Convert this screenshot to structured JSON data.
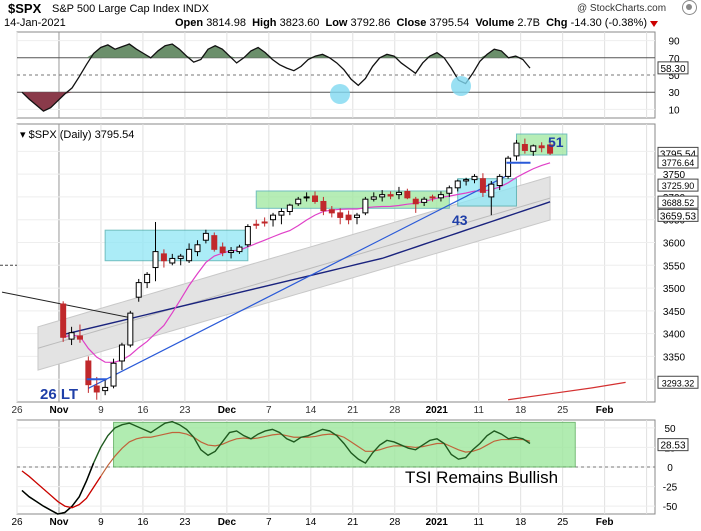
{
  "header": {
    "symbol": "$SPX",
    "name": "S&P 500 Large Cap Index",
    "exchange": "INDX",
    "date": "14-Jan-2021",
    "open_label": "Open",
    "open": "3814.98",
    "high_label": "High",
    "high": "3823.60",
    "low_label": "Low",
    "low": "3792.86",
    "close_label": "Close",
    "close": "3795.54",
    "volume_label": "Volume",
    "volume": "2.7B",
    "chg_label": "Chg",
    "chg": "-14.30 (-0.38%)",
    "watermark": "@ StockCharts.com"
  },
  "price_legend": "$SPX (Daily) 3795.54",
  "annotations": {
    "bottom_low": "26 LT",
    "box_low": "43",
    "box_high": "51",
    "tsi_note": "TSI Remains Bullish"
  },
  "colors": {
    "up": "#000000",
    "down": "#c0282b",
    "box_cyan": "#8fe6f5",
    "box_green": "#9ee89e",
    "ma_fast": "#e040c8",
    "ma_slow": "#1a237e",
    "trendline": "#2a5ad8",
    "ma_long": "#d43030",
    "tsi_line": "#1f5a1f",
    "tsi_signal": "#c0633a"
  },
  "chart_data": [
    {
      "type": "line",
      "panel": "upper-oscillator",
      "ylim": [
        0,
        100
      ],
      "y_ticks": [
        "90",
        "70",
        "50",
        "30",
        "10"
      ],
      "reference_levels": [
        70,
        30
      ],
      "last_value": "58.30",
      "values": [
        30,
        22,
        15,
        8,
        12,
        20,
        28,
        35,
        48,
        62,
        75,
        82,
        85,
        80,
        83,
        86,
        80,
        75,
        70,
        78,
        84,
        86,
        80,
        72,
        65,
        68,
        80,
        84,
        80,
        72,
        64,
        70,
        78,
        82,
        76,
        68,
        62,
        58,
        55,
        60,
        68,
        72,
        74,
        70,
        64,
        56,
        45,
        38,
        46,
        60,
        70,
        74,
        72,
        64,
        58,
        52,
        64,
        72,
        76,
        70,
        58,
        44,
        40,
        52,
        66,
        74,
        80,
        78,
        70,
        72,
        68,
        58
      ]
    },
    {
      "type": "candlestick",
      "panel": "price",
      "title": "$SPX (Daily) 3795.54",
      "ylim": [
        3250,
        3860
      ],
      "y_ticks": [
        3300,
        3350,
        3400,
        3450,
        3500,
        3550,
        3600,
        3650,
        3700,
        3750,
        3800
      ],
      "x_tick_labels": [
        "26",
        "Nov",
        "9",
        "16",
        "23",
        "Dec",
        "7",
        "14",
        "21",
        "28",
        "2021",
        "11",
        "18",
        "25",
        "Feb"
      ],
      "right_labels": [
        "3795.54",
        "3776.64",
        "3750",
        "3725.90",
        "3700",
        "3688.52",
        "3659.53",
        "3293.32"
      ],
      "ohlc": [
        [
          3465,
          3471,
          3382,
          3392
        ],
        [
          3388,
          3415,
          3375,
          3402
        ],
        [
          3395,
          3420,
          3380,
          3388
        ],
        [
          3340,
          3350,
          3270,
          3288
        ],
        [
          3285,
          3305,
          3255,
          3272
        ],
        [
          3275,
          3300,
          3265,
          3282
        ],
        [
          3285,
          3345,
          3280,
          3335
        ],
        [
          3340,
          3380,
          3320,
          3375
        ],
        [
          3375,
          3450,
          3370,
          3445
        ],
        [
          3480,
          3520,
          3470,
          3512
        ],
        [
          3512,
          3535,
          3500,
          3530
        ],
        [
          3545,
          3645,
          3515,
          3580
        ],
        [
          3575,
          3585,
          3545,
          3560
        ],
        [
          3555,
          3575,
          3550,
          3565
        ],
        [
          3565,
          3575,
          3550,
          3570
        ],
        [
          3560,
          3598,
          3555,
          3585
        ],
        [
          3580,
          3605,
          3570,
          3595
        ],
        [
          3605,
          3628,
          3598,
          3620
        ],
        [
          3615,
          3622,
          3580,
          3585
        ],
        [
          3590,
          3600,
          3570,
          3578
        ],
        [
          3578,
          3590,
          3565,
          3582
        ],
        [
          3580,
          3595,
          3575,
          3590
        ],
        [
          3595,
          3640,
          3590,
          3635
        ],
        [
          3640,
          3650,
          3630,
          3638
        ],
        [
          3645,
          3655,
          3635,
          3643
        ],
        [
          3650,
          3665,
          3635,
          3660
        ],
        [
          3660,
          3675,
          3640,
          3668
        ],
        [
          3668,
          3685,
          3660,
          3682
        ],
        [
          3685,
          3700,
          3680,
          3695
        ],
        [
          3700,
          3710,
          3690,
          3700
        ],
        [
          3702,
          3712,
          3685,
          3690
        ],
        [
          3690,
          3700,
          3660,
          3670
        ],
        [
          3672,
          3680,
          3655,
          3665
        ],
        [
          3665,
          3675,
          3640,
          3655
        ],
        [
          3660,
          3670,
          3640,
          3650
        ],
        [
          3655,
          3665,
          3640,
          3660
        ],
        [
          3665,
          3700,
          3660,
          3695
        ],
        [
          3695,
          3710,
          3690,
          3700
        ],
        [
          3700,
          3715,
          3690,
          3705
        ],
        [
          3705,
          3712,
          3695,
          3702
        ],
        [
          3705,
          3722,
          3695,
          3710
        ],
        [
          3712,
          3718,
          3695,
          3698
        ],
        [
          3695,
          3700,
          3665,
          3685
        ],
        [
          3688,
          3700,
          3680,
          3695
        ],
        [
          3700,
          3705,
          3690,
          3698
        ],
        [
          3698,
          3712,
          3690,
          3705
        ],
        [
          3708,
          3725,
          3700,
          3720
        ],
        [
          3720,
          3738,
          3712,
          3735
        ],
        [
          3735,
          3742,
          3725,
          3738
        ],
        [
          3738,
          3750,
          3730,
          3745
        ],
        [
          3740,
          3752,
          3700,
          3710
        ],
        [
          3700,
          3735,
          3660,
          3728
        ],
        [
          3725,
          3750,
          3715,
          3745
        ],
        [
          3745,
          3790,
          3740,
          3785
        ],
        [
          3790,
          3825,
          3780,
          3818
        ],
        [
          3815,
          3828,
          3795,
          3802
        ],
        [
          3800,
          3815,
          3790,
          3812
        ],
        [
          3812,
          3820,
          3798,
          3808
        ],
        [
          3814,
          3824,
          3792,
          3796
        ]
      ]
    },
    {
      "type": "line",
      "panel": "lower-oscillator",
      "title": "TSI Remains Bullish",
      "ylim": [
        -60,
        60
      ],
      "y_ticks": [
        50,
        25,
        0,
        -25,
        -50
      ],
      "last_value": "28.53",
      "series": [
        {
          "values": [
            -30,
            -38,
            -44,
            -50,
            -55,
            -60,
            -58,
            -50,
            -38,
            -18,
            5,
            25,
            40,
            50,
            54,
            56,
            52,
            48,
            44,
            50,
            56,
            58,
            54,
            48,
            38,
            22,
            15,
            20,
            32,
            44,
            46,
            40,
            36,
            42,
            46,
            48,
            44,
            36,
            32,
            38,
            40,
            44,
            48,
            46,
            40,
            30,
            18,
            10,
            5,
            18,
            28,
            34,
            32,
            28,
            24,
            22,
            28,
            34,
            36,
            30,
            16,
            10,
            12,
            22,
            30,
            40,
            46,
            42,
            36,
            38,
            36,
            30
          ]
        },
        {
          "values": [
            -5,
            -12,
            -20,
            -28,
            -36,
            -44,
            -50,
            -52,
            -48,
            -40,
            -26,
            -12,
            2,
            14,
            24,
            32,
            36,
            38,
            38,
            40,
            42,
            44,
            44,
            42,
            38,
            32,
            28,
            27,
            29,
            33,
            36,
            37,
            36,
            37,
            39,
            41,
            42,
            40,
            38,
            38,
            38,
            39,
            41,
            42,
            41,
            38,
            32,
            26,
            20,
            20,
            22,
            25,
            27,
            27,
            26,
            25,
            26,
            28,
            30,
            30,
            26,
            22,
            19,
            20,
            23,
            28,
            33,
            35,
            35,
            35,
            35,
            33
          ]
        }
      ]
    }
  ]
}
